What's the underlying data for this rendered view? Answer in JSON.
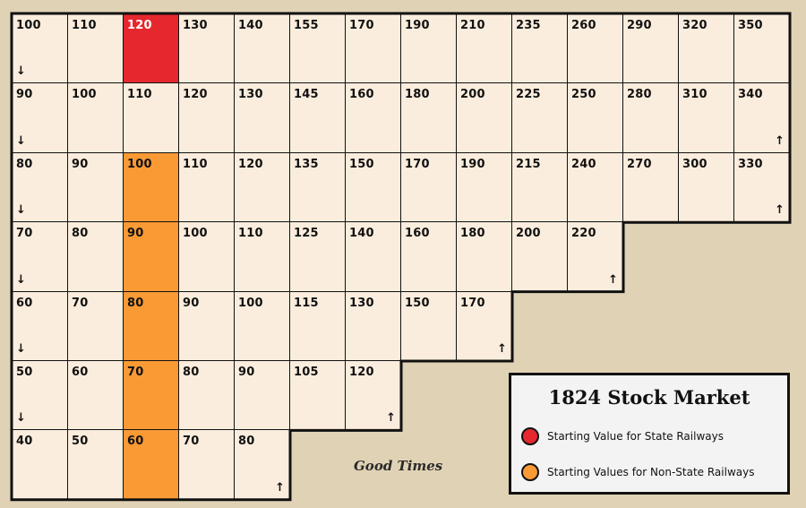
{
  "board": {
    "rows": [
      [
        "100",
        "110",
        "120",
        "130",
        "140",
        "155",
        "170",
        "190",
        "210",
        "235",
        "260",
        "290",
        "320",
        "350"
      ],
      [
        "90",
        "100",
        "110",
        "120",
        "130",
        "145",
        "160",
        "180",
        "200",
        "225",
        "250",
        "280",
        "310",
        "340"
      ],
      [
        "80",
        "90",
        "100",
        "110",
        "120",
        "135",
        "150",
        "170",
        "190",
        "215",
        "240",
        "270",
        "300",
        "330"
      ],
      [
        "70",
        "80",
        "90",
        "100",
        "110",
        "125",
        "140",
        "160",
        "180",
        "200",
        "220"
      ],
      [
        "60",
        "70",
        "80",
        "90",
        "100",
        "115",
        "130",
        "150",
        "170"
      ],
      [
        "50",
        "60",
        "70",
        "80",
        "90",
        "105",
        "120"
      ],
      [
        "40",
        "50",
        "60",
        "70",
        "80"
      ]
    ],
    "state_cell": {
      "row": 0,
      "col": 2
    },
    "nonstate_cells": [
      {
        "row": 2,
        "col": 2
      },
      {
        "row": 3,
        "col": 2
      },
      {
        "row": 4,
        "col": 2
      },
      {
        "row": 5,
        "col": 2
      },
      {
        "row": 6,
        "col": 2
      }
    ],
    "down_arrow_rows": [
      0,
      1,
      2,
      3,
      4,
      5
    ],
    "up_arrow_rows": [
      1,
      2,
      3,
      4,
      5,
      6
    ],
    "arrow_down": "↓",
    "arrow_up": "↑"
  },
  "caption": "Good Times",
  "legend": {
    "title": "1824 Stock Market",
    "items": [
      {
        "label": "Starting Value for State Railways",
        "color": "#e5282d"
      },
      {
        "label": "Starting Values for Non-State Railways",
        "color": "#f99a35"
      }
    ]
  },
  "colors": {
    "background": "#e0d3b5",
    "cell": "#fbeddd",
    "state": "#e5282d",
    "nonstate": "#f99a35"
  }
}
